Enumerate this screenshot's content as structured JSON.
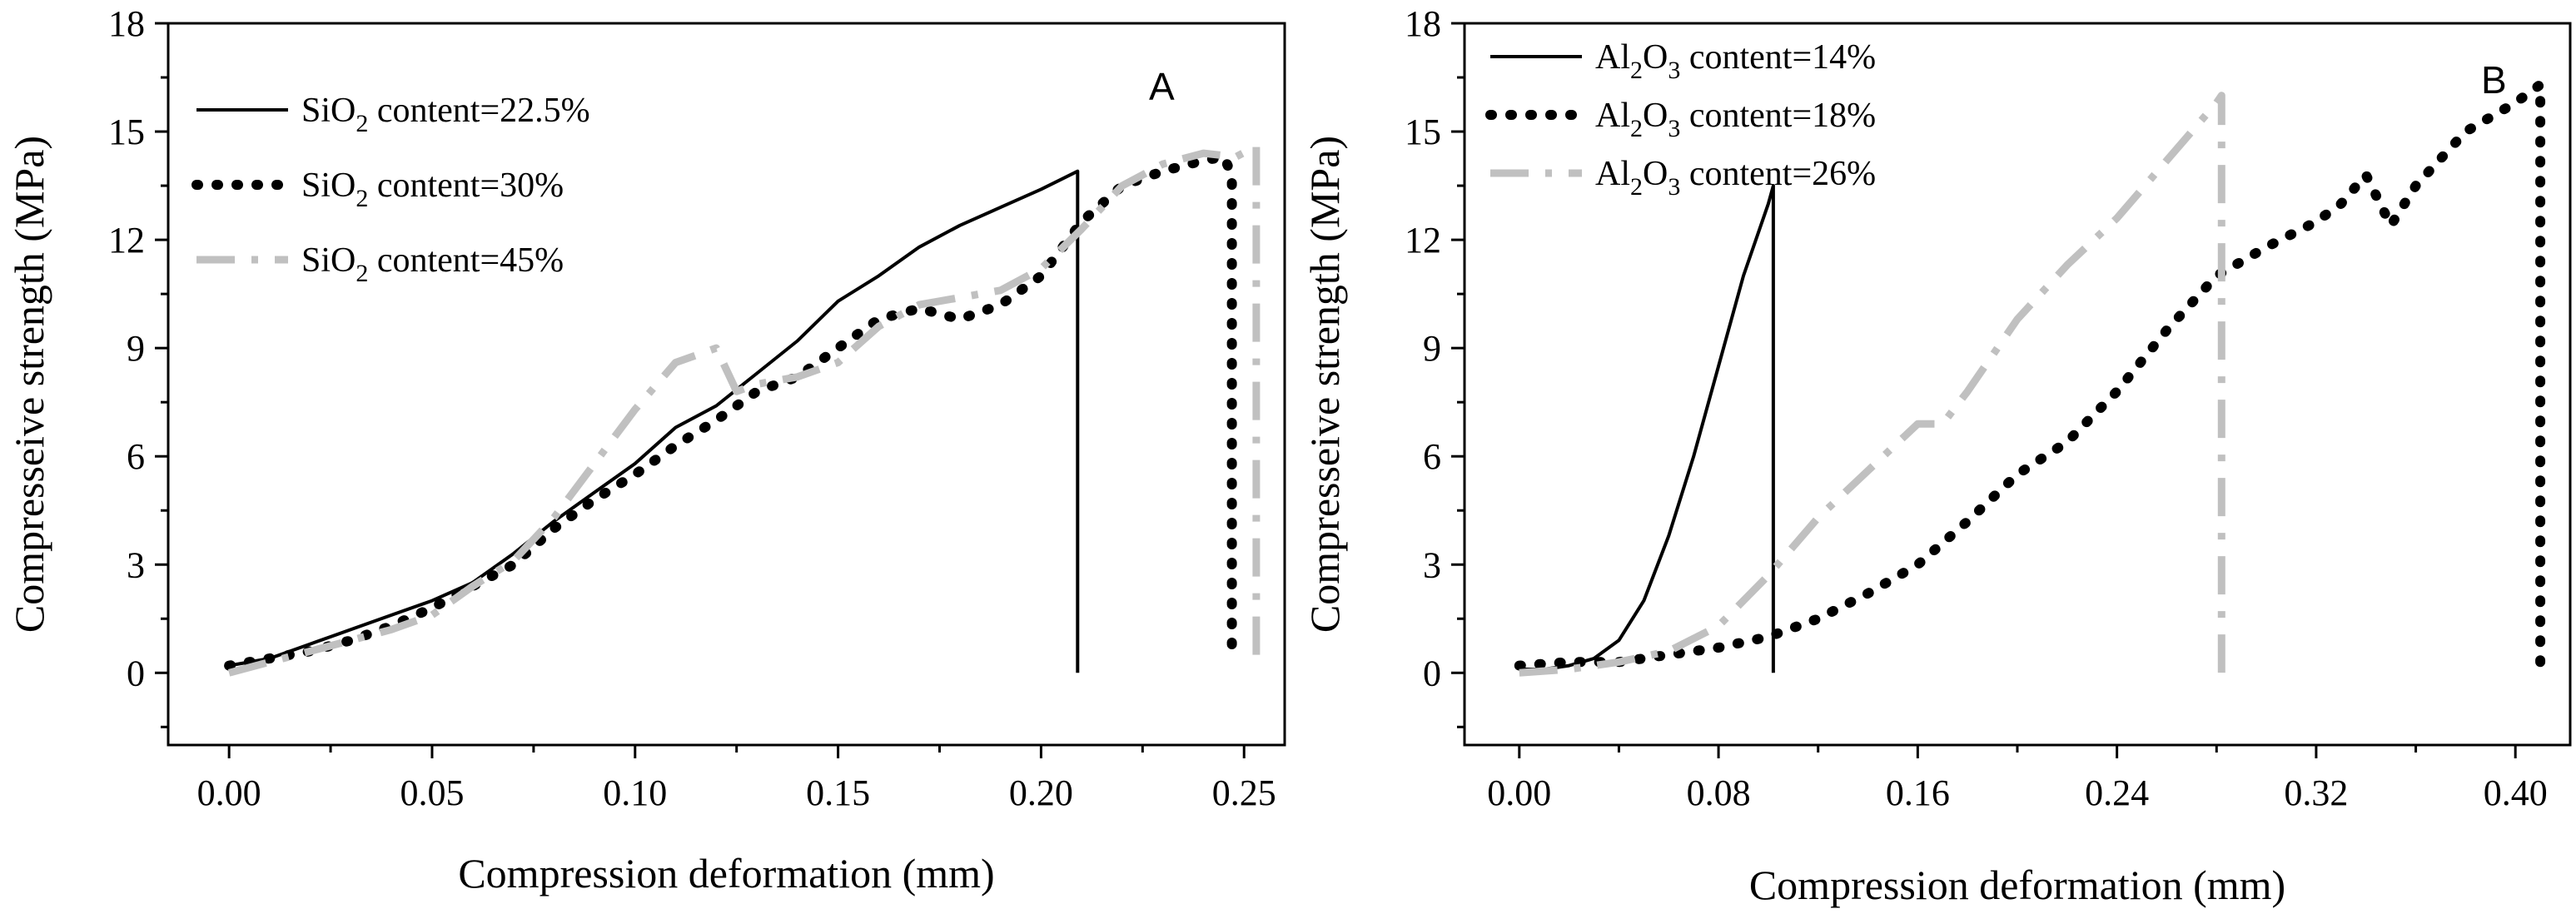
{
  "chart_data": [
    {
      "type": "line",
      "panel_label": "A",
      "xlabel": "Compression deformation (mm)",
      "ylabel": "Compresseive strength (MPa)",
      "xlim": [
        -0.015,
        0.26
      ],
      "ylim": [
        -2,
        18
      ],
      "xticks": [
        0.0,
        0.05,
        0.1,
        0.15,
        0.2,
        0.25
      ],
      "xtick_labels": [
        "0.00",
        "0.05",
        "0.10",
        "0.15",
        "0.20",
        "0.25"
      ],
      "yticks": [
        0,
        3,
        6,
        9,
        12,
        15,
        18
      ],
      "ytick_labels": [
        "0",
        "3",
        "6",
        "9",
        "12",
        "15",
        "18"
      ],
      "legend_position": "upper-left",
      "series": [
        {
          "name": "SiO2 content=22.5%",
          "legend": {
            "pre": "SiO",
            "sub": "2",
            "post": " content=22.5%"
          },
          "style": "solid",
          "color": "#000000",
          "x": [
            0.0,
            0.01,
            0.02,
            0.03,
            0.04,
            0.05,
            0.06,
            0.07,
            0.08,
            0.09,
            0.1,
            0.11,
            0.12,
            0.13,
            0.14,
            0.15,
            0.16,
            0.17,
            0.18,
            0.19,
            0.2,
            0.209,
            0.209
          ],
          "y": [
            0.2,
            0.4,
            0.8,
            1.2,
            1.6,
            2.0,
            2.5,
            3.3,
            4.2,
            5.0,
            5.8,
            6.8,
            7.4,
            8.3,
            9.2,
            10.3,
            11.0,
            11.8,
            12.4,
            12.9,
            13.4,
            13.9,
            0.0
          ]
        },
        {
          "name": "SiO2 content=30%",
          "legend": {
            "pre": "SiO",
            "sub": "2",
            "post": " content=30%"
          },
          "style": "dotted",
          "color": "#000000",
          "x": [
            0.0,
            0.01,
            0.02,
            0.03,
            0.04,
            0.05,
            0.06,
            0.07,
            0.08,
            0.09,
            0.1,
            0.11,
            0.12,
            0.13,
            0.14,
            0.15,
            0.16,
            0.17,
            0.18,
            0.19,
            0.2,
            0.21,
            0.22,
            0.23,
            0.24,
            0.245,
            0.247,
            0.247
          ],
          "y": [
            0.2,
            0.4,
            0.6,
            0.9,
            1.3,
            1.8,
            2.4,
            3.0,
            4.0,
            4.8,
            5.5,
            6.3,
            7.0,
            7.8,
            8.2,
            9.0,
            9.8,
            10.1,
            9.8,
            10.2,
            11.0,
            12.5,
            13.5,
            13.9,
            14.2,
            14.3,
            13.8,
            0.3
          ]
        },
        {
          "name": "SiO2 content=45%",
          "legend": {
            "pre": "SiO",
            "sub": "2",
            "post": " content=45%"
          },
          "style": "dashdot",
          "color": "#c0c0c0",
          "x": [
            0.0,
            0.01,
            0.02,
            0.03,
            0.04,
            0.05,
            0.06,
            0.07,
            0.08,
            0.09,
            0.1,
            0.11,
            0.12,
            0.125,
            0.13,
            0.14,
            0.15,
            0.16,
            0.17,
            0.18,
            0.19,
            0.2,
            0.21,
            0.22,
            0.23,
            0.24,
            0.248,
            0.253,
            0.253
          ],
          "y": [
            0.0,
            0.3,
            0.6,
            0.9,
            1.2,
            1.6,
            2.4,
            3.1,
            4.3,
            5.8,
            7.3,
            8.6,
            9.0,
            7.8,
            8.0,
            8.2,
            8.6,
            9.6,
            10.2,
            10.4,
            10.6,
            11.2,
            12.3,
            13.5,
            14.1,
            14.4,
            14.3,
            14.6,
            0.1
          ]
        }
      ]
    },
    {
      "type": "line",
      "panel_label": "B",
      "xlabel": "Compression deformation (mm)",
      "ylabel": "Compresseive strength (MPa)",
      "xlim": [
        -0.022,
        0.422
      ],
      "ylim": [
        -2,
        18
      ],
      "xticks": [
        0.0,
        0.08,
        0.16,
        0.24,
        0.32,
        0.4
      ],
      "xtick_labels": [
        "0.00",
        "0.08",
        "0.16",
        "0.24",
        "0.32",
        "0.40"
      ],
      "yticks": [
        0,
        3,
        6,
        9,
        12,
        15,
        18
      ],
      "ytick_labels": [
        "0",
        "3",
        "6",
        "9",
        "12",
        "15",
        "18"
      ],
      "legend_position": "upper-left",
      "series": [
        {
          "name": "Al2O3 content=14%",
          "legend": {
            "pre": "Al",
            "sub": "2",
            "mid": "O",
            "sub2": "3",
            "post": " content=14%"
          },
          "style": "solid",
          "color": "#000000",
          "x": [
            0.0,
            0.01,
            0.02,
            0.03,
            0.04,
            0.05,
            0.06,
            0.07,
            0.08,
            0.09,
            0.1,
            0.102,
            0.102
          ],
          "y": [
            0.1,
            0.1,
            0.2,
            0.4,
            0.9,
            2.0,
            3.8,
            6.0,
            8.5,
            11.0,
            13.0,
            13.5,
            0.0
          ]
        },
        {
          "name": "Al2O3 content=18%",
          "legend": {
            "pre": "Al",
            "sub": "2",
            "mid": "O",
            "sub2": "3",
            "post": " content=18%"
          },
          "style": "dotted",
          "color": "#000000",
          "x": [
            0.0,
            0.02,
            0.04,
            0.06,
            0.08,
            0.1,
            0.12,
            0.14,
            0.16,
            0.18,
            0.2,
            0.22,
            0.24,
            0.26,
            0.28,
            0.3,
            0.32,
            0.33,
            0.34,
            0.35,
            0.36,
            0.38,
            0.4,
            0.41,
            0.41
          ],
          "y": [
            0.2,
            0.3,
            0.3,
            0.5,
            0.7,
            1.0,
            1.5,
            2.2,
            3.0,
            4.2,
            5.5,
            6.4,
            7.8,
            9.5,
            11.0,
            11.8,
            12.5,
            13.0,
            13.8,
            12.4,
            13.5,
            15.0,
            15.8,
            16.3,
            0.2
          ]
        },
        {
          "name": "Al2O3 content=26%",
          "legend": {
            "pre": "Al",
            "sub": "2",
            "mid": "O",
            "sub2": "3",
            "post": " content=26%"
          },
          "style": "dashdot",
          "color": "#c0c0c0",
          "x": [
            0.0,
            0.02,
            0.04,
            0.06,
            0.08,
            0.1,
            0.12,
            0.14,
            0.16,
            0.17,
            0.18,
            0.2,
            0.22,
            0.24,
            0.26,
            0.28,
            0.282,
            0.282
          ],
          "y": [
            0.0,
            0.1,
            0.3,
            0.6,
            1.3,
            2.7,
            4.3,
            5.6,
            6.9,
            6.9,
            7.8,
            9.8,
            11.3,
            12.6,
            14.2,
            15.8,
            16.0,
            0.0
          ]
        }
      ]
    }
  ]
}
